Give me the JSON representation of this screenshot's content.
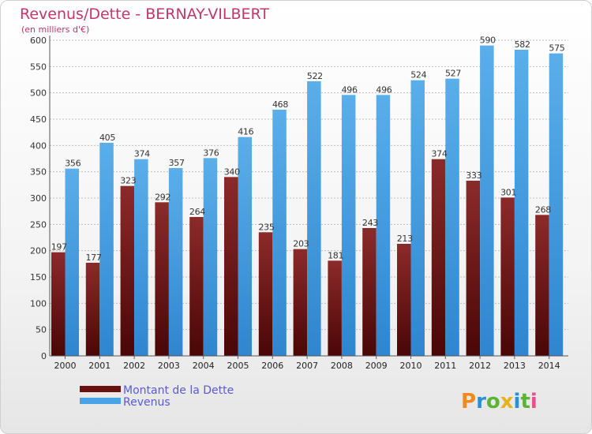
{
  "chart_data": {
    "type": "bar",
    "title": "Revenus/Dette - BERNAY-VILBERT",
    "subtitle": "(en milliers d'€)",
    "categories": [
      "2000",
      "2001",
      "2002",
      "2003",
      "2004",
      "2005",
      "2006",
      "2007",
      "2008",
      "2009",
      "2010",
      "2011",
      "2012",
      "2013",
      "2014"
    ],
    "series": [
      {
        "name": "Montant de la Dette",
        "color": "#7a1e1e",
        "values": [
          197,
          177,
          323,
          292,
          264,
          340,
          235,
          203,
          181,
          243,
          213,
          374,
          333,
          301,
          268
        ]
      },
      {
        "name": "Revenus",
        "color": "#4aa3e6",
        "values": [
          356,
          405,
          374,
          357,
          376,
          416,
          468,
          522,
          496,
          496,
          524,
          527,
          590,
          582,
          575
        ]
      }
    ],
    "ylim": [
      0,
      600
    ],
    "yticks": [
      0,
      50,
      100,
      150,
      200,
      250,
      300,
      350,
      400,
      450,
      500,
      550,
      600
    ],
    "grid": true,
    "legend_position": "bottom-left"
  },
  "brand": {
    "logo_letters": [
      "P",
      "r",
      "o",
      "x",
      "i",
      "t",
      "i"
    ],
    "logo_colors": [
      "#f08a1c",
      "#2a8fd6",
      "#5bb534",
      "#e8b21a",
      "#2a8fd6",
      "#5bb534",
      "#e84f8c"
    ]
  }
}
